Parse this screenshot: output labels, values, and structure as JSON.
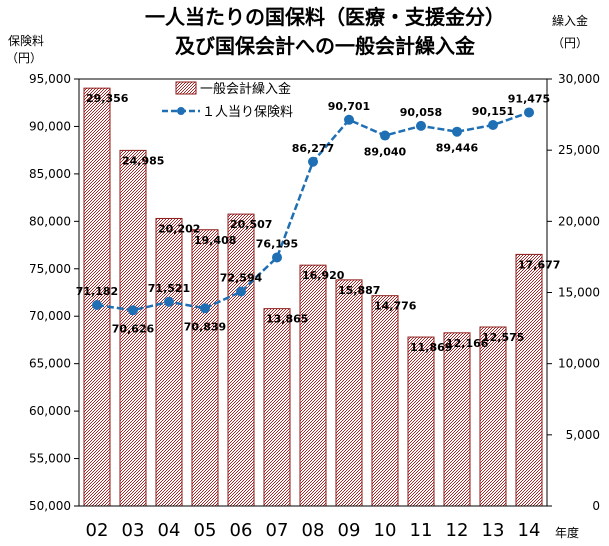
{
  "chart_data": {
    "type": "bar",
    "title_line1": "一人当たりの国保料（医療・支援金分）",
    "title_line2": "及び国保会計への一般会計繰入金",
    "left_axis_label_line1": "保険料",
    "left_axis_label_line2": "（円）",
    "right_axis_label_line1": "繰入金",
    "right_axis_label_line2": "（円）",
    "xlabel": "年度",
    "categories": [
      "02",
      "03",
      "04",
      "05",
      "06",
      "07",
      "08",
      "09",
      "10",
      "11",
      "12",
      "13",
      "14"
    ],
    "left_ylim": [
      50000,
      95000
    ],
    "left_ticks": [
      "50,000",
      "55,000",
      "60,000",
      "65,000",
      "70,000",
      "75,000",
      "80,000",
      "85,000",
      "90,000",
      "95,000"
    ],
    "right_ylim": [
      0,
      30000
    ],
    "right_ticks": [
      "0",
      "5,000",
      "10,000",
      "15,000",
      "20,000",
      "25,000",
      "30,000"
    ],
    "grid": false,
    "legend_position": "top-left",
    "series": [
      {
        "name": "一般会計繰入金",
        "type": "bar",
        "axis": "right",
        "color": "#9b1c1c",
        "values": [
          29356,
          24985,
          20202,
          19408,
          20507,
          13865,
          16920,
          15887,
          14776,
          11869,
          12166,
          12575,
          17677
        ],
        "labels": [
          "29,356",
          "24,985",
          "20,202",
          "19,408",
          "20,507",
          "13,865",
          "16,920",
          "15,887",
          "14,776",
          "11,869",
          "12,166",
          "12,575",
          "17,677"
        ]
      },
      {
        "name": "１人当り保険料",
        "type": "line",
        "axis": "left",
        "color": "#1f6fb5",
        "values": [
          71182,
          70626,
          71521,
          70839,
          72594,
          76195,
          86277,
          90701,
          89040,
          90058,
          89446,
          90151,
          91475
        ],
        "labels": [
          "71,182",
          "70,626",
          "71,521",
          "70,839",
          "72,594",
          "76,195",
          "86,277",
          "90,701",
          "89,040",
          "90,058",
          "89,446",
          "90,151",
          "91,475"
        ]
      }
    ]
  }
}
